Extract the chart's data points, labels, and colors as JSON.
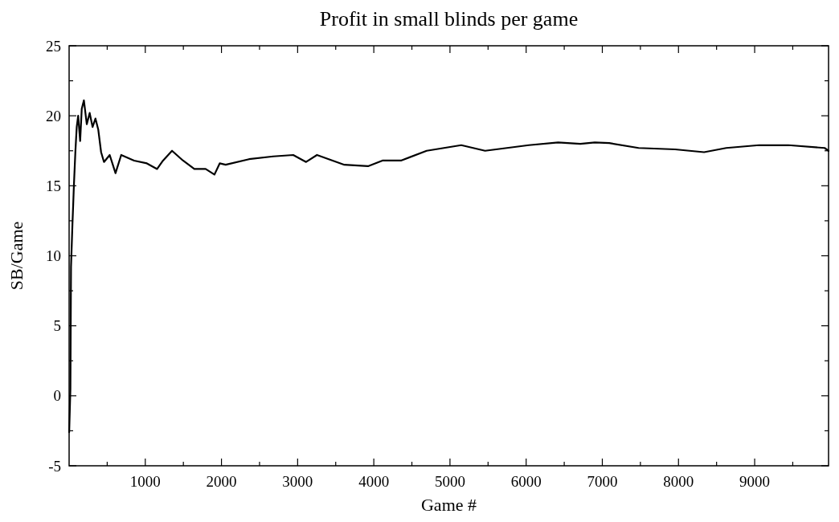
{
  "chart_data": {
    "type": "line",
    "title": "Profit in small blinds per game",
    "xlabel": "Game #",
    "ylabel": "SB/Game",
    "xlim": [
      0,
      9970
    ],
    "ylim": [
      -5,
      25
    ],
    "xticks": [
      {
        "value": 500,
        "label": null
      },
      1000,
      {
        "value": 1500,
        "label": null
      },
      2000,
      {
        "value": 2500,
        "label": null
      },
      3000,
      {
        "value": 3500,
        "label": null
      },
      4000,
      {
        "value": 4500,
        "label": null
      },
      5000,
      {
        "value": 5500,
        "label": null
      },
      6000,
      {
        "value": 6500,
        "label": null
      },
      7000,
      {
        "value": 7500,
        "label": null
      },
      8000,
      {
        "value": 8500,
        "label": null
      },
      9000,
      {
        "value": 9500,
        "label": null
      }
    ],
    "yticks": [
      -5,
      {
        "value": -2.5,
        "label": null
      },
      0,
      {
        "value": 2.5,
        "label": null
      },
      5,
      {
        "value": 7.5,
        "label": null
      },
      10,
      {
        "value": 12.5,
        "label": null
      },
      15,
      {
        "value": 17.5,
        "label": null
      },
      20,
      {
        "value": 22.5,
        "label": null
      },
      25
    ],
    "grid": false,
    "marker": "none",
    "line_style": "solid",
    "series": [
      {
        "color": "#000000",
        "x": [
          1,
          17,
          25,
          44,
          54,
          62,
          82,
          100,
          119,
          145,
          166,
          194,
          232,
          270,
          308,
          346,
          383,
          420,
          458,
          533,
          609,
          684,
          853,
          1021,
          1155,
          1233,
          1351,
          1496,
          1644,
          1792,
          1908,
          1977,
          2055,
          2362,
          2679,
          2942,
          3111,
          3254,
          3614,
          3924,
          4113,
          4356,
          4694,
          5148,
          5461,
          6035,
          6420,
          6711,
          6901,
          7091,
          7476,
          7955,
          8336,
          8627,
          9058,
          9443,
          9918,
          9970
        ],
        "values": [
          -2.6,
          0.5,
          9.2,
          12.3,
          13.7,
          14.9,
          17.4,
          19.2,
          20.0,
          18.2,
          20.5,
          21.1,
          19.4,
          20.2,
          19.2,
          19.8,
          19.0,
          17.4,
          16.7,
          17.2,
          15.9,
          17.2,
          16.8,
          16.6,
          16.2,
          16.8,
          17.5,
          16.8,
          16.2,
          16.2,
          15.8,
          16.6,
          16.5,
          16.9,
          17.1,
          17.2,
          16.7,
          17.2,
          16.5,
          16.4,
          16.8,
          16.8,
          17.5,
          17.9,
          17.5,
          17.9,
          18.1,
          18.0,
          18.1,
          18.05,
          17.7,
          17.6,
          17.4,
          17.7,
          17.9,
          17.9,
          17.7,
          17.5
        ]
      }
    ]
  }
}
